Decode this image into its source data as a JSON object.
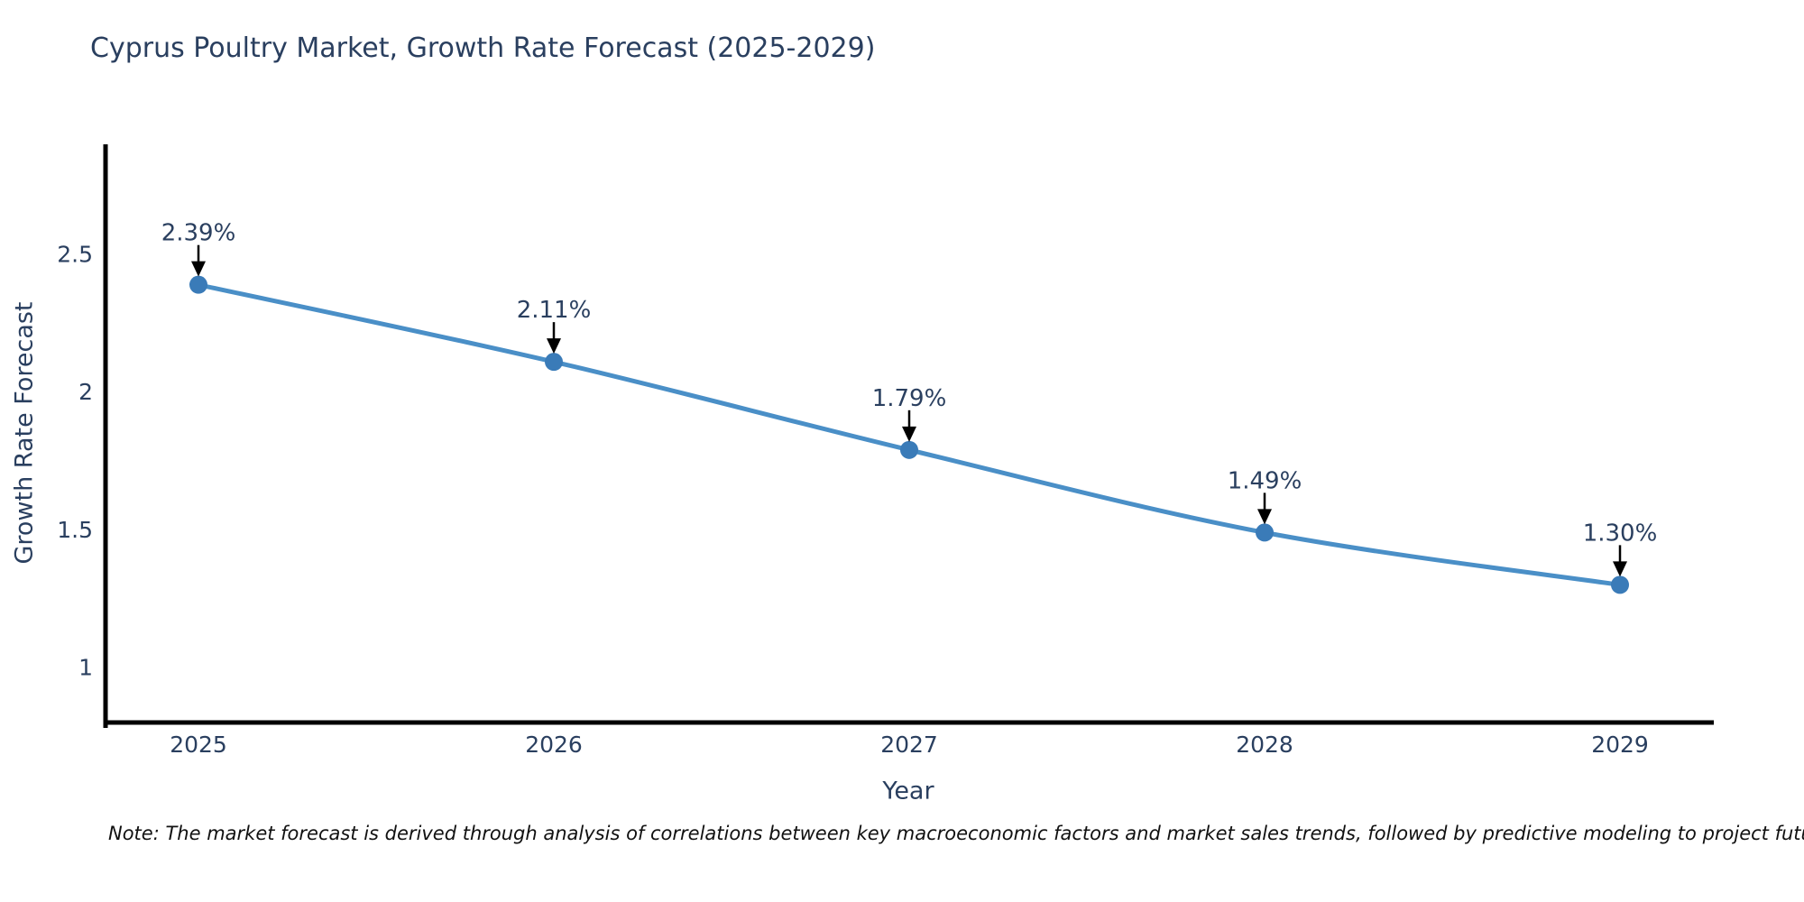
{
  "title": "Cyprus Poultry Market, Growth Rate Forecast (2025-2029)",
  "note": "Note: The market forecast is derived through analysis of correlations between key macroeconomic factors and market sales trends, followed by predictive modeling to project future sales",
  "chart_data": {
    "type": "line",
    "title": "Cyprus Poultry Market, Growth Rate Forecast (2025-2029)",
    "xlabel": "Year",
    "ylabel": "Growth Rate Forecast",
    "x": [
      2025,
      2026,
      2027,
      2028,
      2029
    ],
    "xticks": [
      "2025",
      "2026",
      "2027",
      "2028",
      "2029"
    ],
    "yticks": [
      1,
      1.5,
      2,
      2.5
    ],
    "ylim": [
      0.8,
      2.9
    ],
    "grid": false,
    "legend": "none",
    "line_shape": "spline",
    "series": [
      {
        "name": "Growth Rate Forecast",
        "values": [
          2.39,
          2.11,
          1.79,
          1.49,
          1.3
        ]
      }
    ],
    "point_labels": [
      "2.39%",
      "2.11%",
      "1.79%",
      "1.49%",
      "1.30%"
    ],
    "colors": {
      "line": "#4a8fc7",
      "marker": "#3a7bb8",
      "axis": "#000000",
      "text": "#2a3f5f",
      "annotation_arrow": "#000000",
      "note_text": "#111111",
      "background": "#ffffff"
    }
  }
}
